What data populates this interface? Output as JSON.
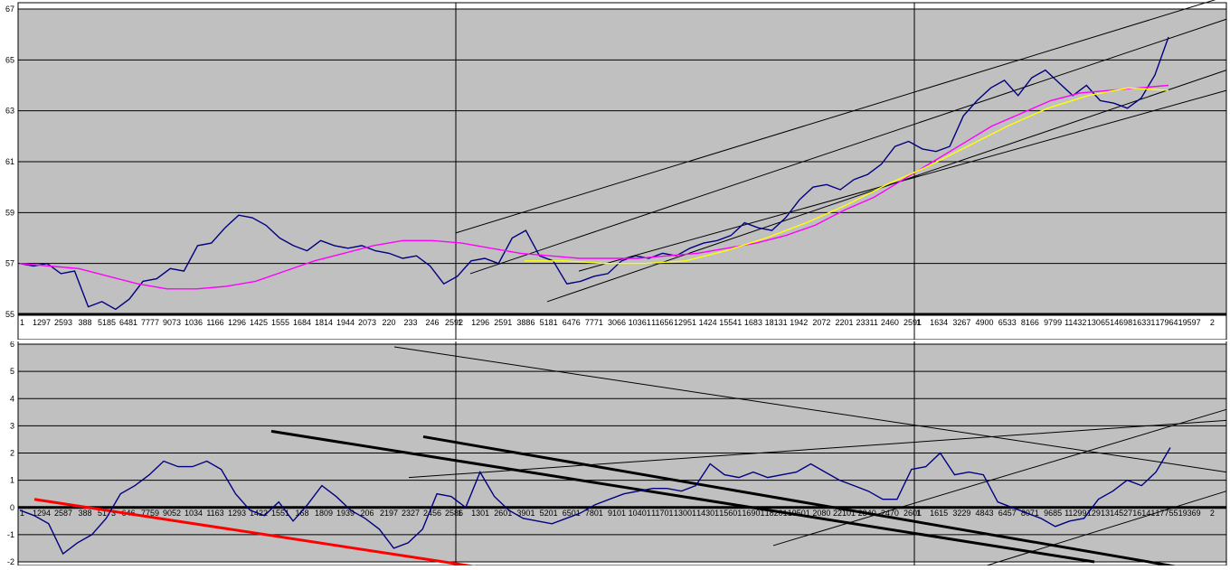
{
  "chart_data": [
    {
      "type": "line",
      "ylim": [
        55,
        67
      ],
      "ytick_labels": [
        "55",
        "57",
        "59",
        "61",
        "63",
        "65",
        "67"
      ],
      "grid": true,
      "panels": [
        {
          "xtick_labels": [
            "1",
            "1297",
            "2593",
            "388",
            "5185",
            "6481",
            "7777",
            "9073",
            "1036",
            "1166",
            "1296",
            "1425",
            "1555",
            "1684",
            "1814",
            "1944",
            "2073",
            "220",
            "233",
            "246",
            "2592"
          ]
        },
        {
          "xtick_labels": [
            "1",
            "1296",
            "2591",
            "3886",
            "5181",
            "6476",
            "7771",
            "3066",
            "10361",
            "11656",
            "12951",
            "1424",
            "15541",
            "1683",
            "18131",
            "1942",
            "2072",
            "2201",
            "23311",
            "2460",
            "2591"
          ]
        },
        {
          "xtick_labels": [
            "1",
            "1634",
            "3267",
            "4900",
            "6533",
            "8166",
            "9799",
            "11432",
            "13065",
            "14698",
            "16331",
            "17964",
            "19597",
            "2"
          ]
        }
      ],
      "series": [
        {
          "color": "#000080",
          "role": "price"
        },
        {
          "color": "#ff00ff",
          "role": "average"
        },
        {
          "color": "#ffff00",
          "role": "average"
        }
      ],
      "lines": [
        {
          "color": "#000000",
          "y": [
            58.2,
            67.5
          ]
        },
        {
          "color": "#000000",
          "y": [
            56.6,
            66.6
          ]
        },
        {
          "color": "#000000",
          "y": [
            55.5,
            64.6
          ]
        },
        {
          "color": "#000000",
          "y": [
            56.7,
            63.8
          ]
        }
      ],
      "points": {
        "price": [
          57.0,
          56.9,
          57.0,
          56.6,
          56.7,
          55.3,
          55.5,
          55.2,
          55.6,
          56.3,
          56.4,
          56.8,
          56.7,
          57.7,
          57.8,
          58.4,
          58.9,
          58.8,
          58.5,
          58.0,
          57.7,
          57.5,
          57.9,
          57.7,
          57.6,
          57.7,
          57.5,
          57.4,
          57.2,
          57.3,
          56.9,
          56.2,
          56.5,
          57.1,
          57.2,
          57.0,
          58.0,
          58.3,
          57.3,
          57.1,
          56.2,
          56.3,
          56.5,
          56.6,
          57.1,
          57.3,
          57.2,
          57.4,
          57.3,
          57.6,
          57.8,
          57.9,
          58.1,
          58.6,
          58.4,
          58.3,
          58.8,
          59.5,
          60.0,
          60.1,
          59.9,
          60.3,
          60.5,
          60.9,
          61.6,
          61.8,
          61.5,
          61.4,
          61.6,
          62.8,
          63.4,
          63.9,
          64.2,
          63.6,
          64.3,
          64.6,
          64.1,
          63.6,
          64.0,
          63.4,
          63.3,
          63.1,
          63.5,
          64.4,
          65.9
        ],
        "average": [
          57.0,
          56.9,
          56.8,
          56.5,
          56.2,
          56.0,
          56.0,
          56.1,
          56.3,
          56.7,
          57.1,
          57.4,
          57.7,
          57.9,
          57.9,
          57.8,
          57.6,
          57.4,
          57.3,
          57.2,
          57.2,
          57.2,
          57.3,
          57.4,
          57.6,
          57.8,
          58.1,
          58.5,
          59.1,
          59.6,
          60.3,
          61.0,
          61.7,
          62.4,
          62.9,
          63.4,
          63.7,
          63.8,
          63.9,
          64.0
        ],
        "yellow_avg": [
          57.1,
          57.1,
          57.0,
          57.0,
          57.1,
          57.5,
          58.0,
          58.6,
          59.3,
          60.1,
          60.8,
          61.6,
          62.4,
          63.1,
          63.6,
          63.9,
          63.8
        ]
      }
    },
    {
      "type": "line",
      "ylim": [
        -2,
        6
      ],
      "ytick_labels": [
        "-2",
        "-1",
        "0",
        "1",
        "2",
        "3",
        "4",
        "5",
        "6"
      ],
      "grid": true,
      "panels": [
        {
          "xtick_labels": [
            "1",
            "1294",
            "2587",
            "388",
            "5173",
            "646",
            "7759",
            "9052",
            "1034",
            "1163",
            "1293",
            "1422",
            "1551",
            "168",
            "1809",
            "1939",
            "206",
            "2197",
            "2327",
            "2456",
            "2586"
          ]
        },
        {
          "xtick_labels": [
            "1",
            "1301",
            "2601",
            "3901",
            "5201",
            "6501",
            "7801",
            "9101",
            "10401",
            "11701",
            "13001",
            "14301",
            "15601",
            "16901",
            "18201",
            "19501",
            "2080",
            "22101",
            "2340",
            "2470",
            "2601"
          ]
        },
        {
          "xtick_labels": [
            "1",
            "1615",
            "3229",
            "4843",
            "6457",
            "8071",
            "9685",
            "11299",
            "12913",
            "14527",
            "16141",
            "17755",
            "19369",
            "2"
          ]
        }
      ],
      "series": [
        {
          "color": "#000080",
          "role": "indicator"
        }
      ],
      "lines": [
        {
          "color": "#ff0000",
          "y": [
            0.3,
            -2.2
          ]
        },
        {
          "color": "#000000",
          "y": [
            2.8,
            -2.0
          ]
        },
        {
          "color": "#000000",
          "y": [
            2.6,
            -2.2
          ]
        },
        {
          "color": "#000000",
          "y": [
            1.1,
            3.2
          ]
        },
        {
          "color": "#000000",
          "y": [
            5.9,
            1.3
          ]
        },
        {
          "color": "#000000",
          "y": [
            -1.4,
            3.6
          ]
        },
        {
          "color": "#000000",
          "y": [
            -2.3,
            0.6
          ]
        }
      ],
      "points": {
        "indicator": [
          -0.1,
          -0.3,
          -0.6,
          -1.7,
          -1.3,
          -1.0,
          -0.4,
          0.5,
          0.8,
          1.2,
          1.7,
          1.5,
          1.5,
          1.7,
          1.4,
          0.5,
          -0.1,
          -0.3,
          0.2,
          -0.5,
          0.1,
          0.8,
          0.4,
          -0.1,
          -0.4,
          -0.8,
          -1.5,
          -1.3,
          -0.8,
          0.5,
          0.4,
          0.0,
          1.3,
          0.4,
          -0.1,
          -0.4,
          -0.5,
          -0.6,
          -0.4,
          -0.2,
          0.1,
          0.3,
          0.5,
          0.6,
          0.7,
          0.7,
          0.6,
          0.8,
          1.6,
          1.2,
          1.1,
          1.3,
          1.1,
          1.2,
          1.3,
          1.6,
          1.3,
          1.0,
          0.8,
          0.6,
          0.3,
          0.3,
          1.4,
          1.5,
          2.0,
          1.2,
          1.3,
          1.2,
          0.2,
          0.0,
          -0.2,
          -0.4,
          -0.7,
          -0.5,
          -0.4,
          0.3,
          0.6,
          1.0,
          0.8,
          1.3,
          2.2
        ]
      }
    }
  ]
}
